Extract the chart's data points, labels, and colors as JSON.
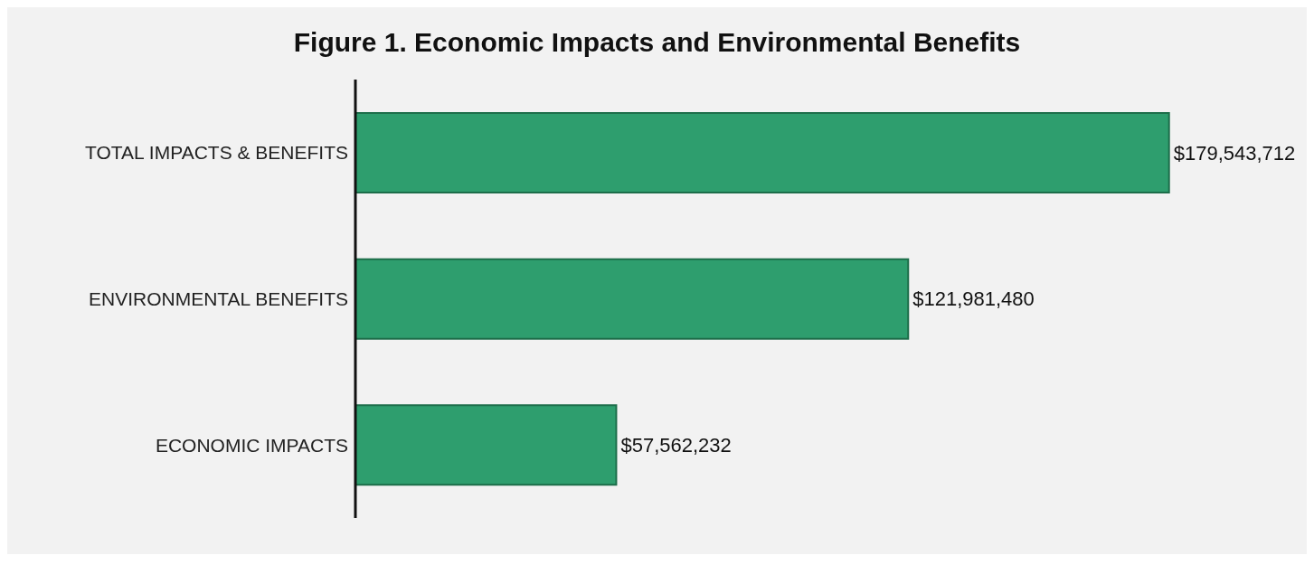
{
  "chart_data": {
    "type": "bar",
    "orientation": "horizontal",
    "title": "Figure 1. Economic Impacts and Environmental Benefits",
    "categories": [
      "TOTAL IMPACTS & BENEFITS",
      "ENVIRONMENTAL BENEFITS",
      "ECONOMIC IMPACTS"
    ],
    "values": [
      179543712,
      121981480,
      57562232
    ],
    "value_labels": [
      "$179,543,712",
      "$121,981,480",
      "$57,562,232"
    ],
    "color": "#2e9e6e",
    "tick_labels": "y",
    "legend": false
  }
}
